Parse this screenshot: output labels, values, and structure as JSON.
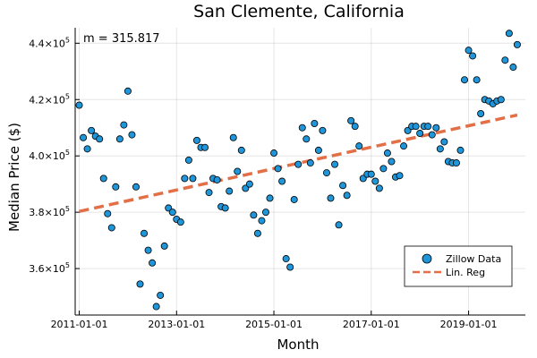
{
  "chart_data": {
    "type": "scatter",
    "title": "San Clemente, California",
    "xlabel": "Month",
    "ylabel": "Median Price ($)",
    "annotation": "m = 315.817",
    "x_ticks": [
      "2011-01-01",
      "2013-01-01",
      "2015-01-01",
      "2017-01-01",
      "2019-01-01"
    ],
    "y_ticks": [
      {
        "value": 360000,
        "base": "3.6×10",
        "exp": "5"
      },
      {
        "value": 380000,
        "base": "3.8×10",
        "exp": "5"
      },
      {
        "value": 400000,
        "base": "4.0×10",
        "exp": "5"
      },
      {
        "value": 420000,
        "base": "4.2×10",
        "exp": "5"
      },
      {
        "value": 440000,
        "base": "4.4×10",
        "exp": "5"
      }
    ],
    "xlim": [
      "2010-12-01",
      "2020-03-01"
    ],
    "ylim": [
      343500,
      445500
    ],
    "grid": true,
    "legend_position": "bottom-right",
    "colors": {
      "points": "#1f96d9",
      "regression": "#e26f46"
    },
    "series": [
      {
        "name": "Zillow Data",
        "kind": "scatter",
        "points": [
          [
            "2011-01-01",
            418000
          ],
          [
            "2011-02-01",
            406500
          ],
          [
            "2011-03-01",
            402500
          ],
          [
            "2011-04-01",
            409000
          ],
          [
            "2011-05-01",
            407000
          ],
          [
            "2011-06-01",
            406000
          ],
          [
            "2011-07-01",
            392000
          ],
          [
            "2011-08-01",
            379500
          ],
          [
            "2011-09-01",
            374500
          ],
          [
            "2011-10-01",
            389000
          ],
          [
            "2011-11-01",
            406000
          ],
          [
            "2011-12-01",
            411000
          ],
          [
            "2012-01-01",
            423000
          ],
          [
            "2012-02-01",
            407500
          ],
          [
            "2012-03-01",
            389000
          ],
          [
            "2012-04-01",
            354500
          ],
          [
            "2012-05-01",
            372500
          ],
          [
            "2012-06-01",
            366500
          ],
          [
            "2012-07-01",
            362000
          ],
          [
            "2012-08-01",
            346500
          ],
          [
            "2012-09-01",
            350500
          ],
          [
            "2012-10-01",
            368000
          ],
          [
            "2012-11-01",
            381500
          ],
          [
            "2012-12-01",
            380000
          ],
          [
            "2013-01-01",
            377500
          ],
          [
            "2013-02-01",
            376500
          ],
          [
            "2013-03-01",
            392000
          ],
          [
            "2013-04-01",
            398500
          ],
          [
            "2013-05-01",
            392000
          ],
          [
            "2013-06-01",
            405500
          ],
          [
            "2013-07-01",
            403000
          ],
          [
            "2013-08-01",
            403000
          ],
          [
            "2013-09-01",
            387000
          ],
          [
            "2013-10-01",
            392000
          ],
          [
            "2013-11-01",
            391500
          ],
          [
            "2013-12-01",
            382000
          ],
          [
            "2014-01-01",
            381500
          ],
          [
            "2014-02-01",
            387500
          ],
          [
            "2014-03-01",
            406500
          ],
          [
            "2014-04-01",
            394500
          ],
          [
            "2014-05-01",
            402000
          ],
          [
            "2014-06-01",
            388500
          ],
          [
            "2014-07-01",
            390000
          ],
          [
            "2014-08-01",
            379000
          ],
          [
            "2014-09-01",
            372500
          ],
          [
            "2014-10-01",
            377000
          ],
          [
            "2014-11-01",
            380000
          ],
          [
            "2014-12-01",
            385000
          ],
          [
            "2015-01-01",
            401000
          ],
          [
            "2015-02-01",
            395500
          ],
          [
            "2015-03-01",
            391000
          ],
          [
            "2015-04-01",
            363500
          ],
          [
            "2015-05-01",
            360500
          ],
          [
            "2015-06-01",
            384500
          ],
          [
            "2015-07-01",
            397000
          ],
          [
            "2015-08-01",
            410000
          ],
          [
            "2015-09-01",
            406000
          ],
          [
            "2015-10-01",
            397500
          ],
          [
            "2015-11-01",
            411500
          ],
          [
            "2015-12-01",
            402000
          ],
          [
            "2016-01-01",
            409000
          ],
          [
            "2016-02-01",
            394000
          ],
          [
            "2016-03-01",
            385000
          ],
          [
            "2016-04-01",
            397000
          ],
          [
            "2016-05-01",
            375500
          ],
          [
            "2016-06-01",
            389500
          ],
          [
            "2016-07-01",
            386000
          ],
          [
            "2016-08-01",
            412500
          ],
          [
            "2016-09-01",
            410500
          ],
          [
            "2016-10-01",
            403500
          ],
          [
            "2016-11-01",
            392000
          ],
          [
            "2016-12-01",
            393500
          ],
          [
            "2017-01-01",
            393500
          ],
          [
            "2017-02-01",
            391000
          ],
          [
            "2017-03-01",
            388500
          ],
          [
            "2017-04-01",
            395500
          ],
          [
            "2017-05-01",
            401000
          ],
          [
            "2017-06-01",
            398000
          ],
          [
            "2017-07-01",
            392500
          ],
          [
            "2017-08-01",
            393000
          ],
          [
            "2017-09-01",
            403500
          ],
          [
            "2017-10-01",
            409000
          ],
          [
            "2017-11-01",
            410500
          ],
          [
            "2017-12-01",
            410500
          ],
          [
            "2018-01-01",
            408000
          ],
          [
            "2018-02-01",
            410500
          ],
          [
            "2018-03-01",
            410500
          ],
          [
            "2018-04-01",
            407500
          ],
          [
            "2018-05-01",
            410000
          ],
          [
            "2018-06-01",
            402500
          ],
          [
            "2018-07-01",
            405000
          ],
          [
            "2018-08-01",
            398000
          ],
          [
            "2018-09-01",
            397500
          ],
          [
            "2018-10-01",
            397500
          ],
          [
            "2018-11-01",
            402000
          ],
          [
            "2018-12-01",
            427000
          ],
          [
            "2019-01-01",
            437500
          ],
          [
            "2019-02-01",
            435500
          ],
          [
            "2019-03-01",
            427000
          ],
          [
            "2019-04-01",
            415000
          ],
          [
            "2019-05-01",
            420000
          ],
          [
            "2019-06-01",
            419500
          ],
          [
            "2019-07-01",
            418500
          ],
          [
            "2019-08-01",
            419500
          ],
          [
            "2019-09-01",
            420000
          ],
          [
            "2019-10-01",
            434000
          ],
          [
            "2019-11-01",
            443500
          ],
          [
            "2019-12-01",
            431500
          ],
          [
            "2020-01-01",
            439500
          ]
        ]
      },
      {
        "name": "Lin. Reg",
        "kind": "line",
        "points": [
          [
            "2011-01-01",
            380300
          ],
          [
            "2020-01-01",
            414500
          ]
        ]
      }
    ]
  }
}
